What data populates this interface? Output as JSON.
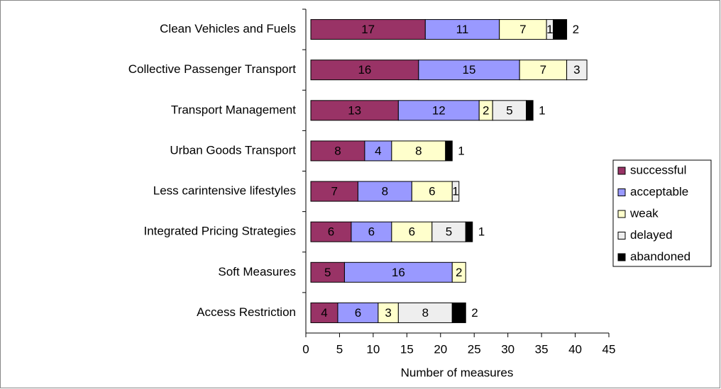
{
  "chart_data": {
    "type": "stacked_bar_horizontal",
    "categories": [
      "Clean Vehicles and Fuels",
      "Collective Passenger Transport",
      "Transport Management",
      "Urban Goods Transport",
      "Less carintensive lifestyles",
      "Integrated Pricing Strategies",
      "Soft Measures",
      "Access Restriction"
    ],
    "series": [
      {
        "name": "successful",
        "color": "#993366",
        "values": [
          17,
          16,
          13,
          8,
          7,
          6,
          5,
          4
        ]
      },
      {
        "name": "acceptable",
        "color": "#9999ff",
        "values": [
          11,
          15,
          12,
          4,
          8,
          6,
          16,
          6
        ]
      },
      {
        "name": "weak",
        "color": "#ffffcc",
        "values": [
          7,
          7,
          2,
          8,
          6,
          6,
          2,
          3
        ]
      },
      {
        "name": "delayed",
        "color": "#eeeeee",
        "values": [
          1,
          3,
          5,
          null,
          1,
          5,
          null,
          8
        ]
      },
      {
        "name": "abandoned",
        "color": "#000000",
        "values": [
          2,
          null,
          1,
          1,
          null,
          1,
          null,
          2
        ]
      }
    ],
    "x_label": "Number of measures",
    "xlim": [
      0,
      45
    ],
    "xticks": [
      0,
      5,
      10,
      15,
      20,
      25,
      30,
      35,
      40,
      45
    ],
    "legend": "right"
  }
}
